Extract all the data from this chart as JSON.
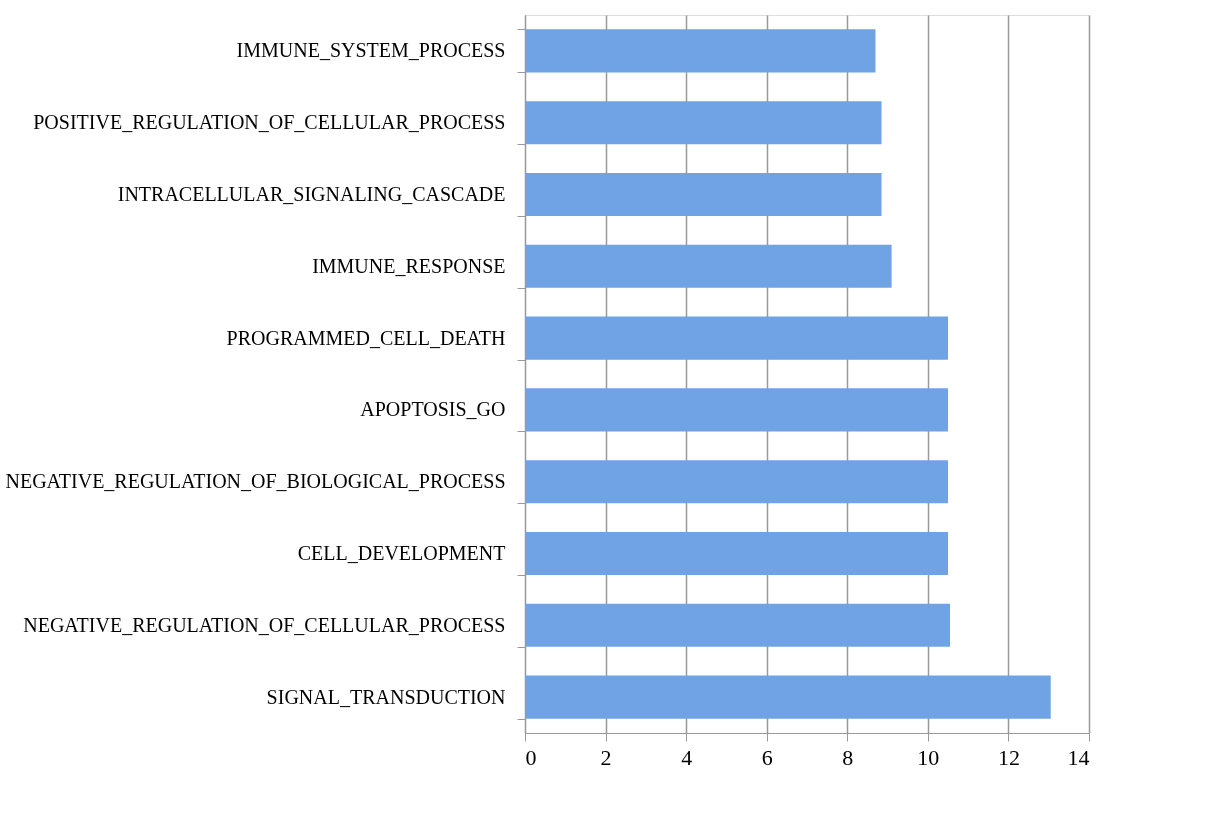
{
  "chart_data": {
    "type": "bar",
    "orientation": "horizontal",
    "categories": [
      "IMMUNE_SYSTEM_PROCESS",
      "POSITIVE_REGULATION_OF_CELLULAR_PROCESS",
      "INTRACELLULAR_SIGNALING_CASCADE",
      "IMMUNE_RESPONSE",
      "PROGRAMMED_CELL_DEATH",
      "APOPTOSIS_GO",
      "NEGATIVE_REGULATION_OF_BIOLOGICAL_PROCESS",
      "CELL_DEVELOPMENT",
      "NEGATIVE_REGULATION_OF_CELLULAR_PROCESS",
      "SIGNAL_TRANSDUCTION"
    ],
    "values": [
      8.7,
      8.85,
      8.85,
      9.1,
      10.5,
      10.5,
      10.5,
      10.5,
      10.55,
      13.05
    ],
    "color": "#6fa3e6",
    "xlim": [
      0,
      14
    ],
    "xticks": [
      0,
      2,
      4,
      6,
      8,
      10,
      12,
      14
    ],
    "grid": "x",
    "legend": false
  }
}
